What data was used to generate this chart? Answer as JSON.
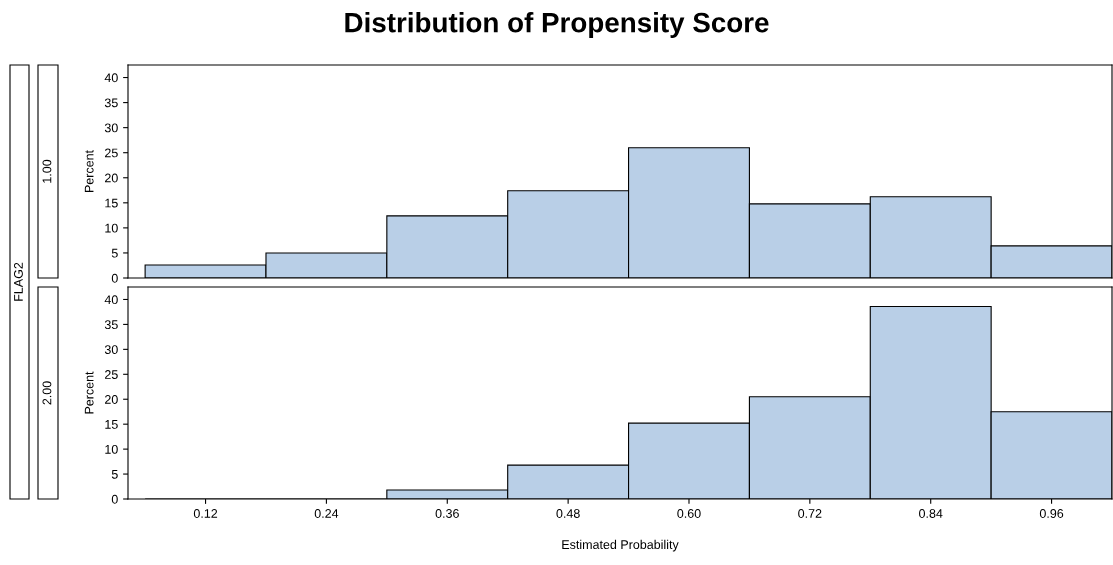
{
  "chart_data": [
    {
      "type": "histogram",
      "title": "Distribution of Propensity Score",
      "ylabel": "Percent",
      "annotations": [
        "FLAG2",
        "1.00"
      ],
      "bins": [
        0.06,
        0.18,
        0.3,
        0.42,
        0.54,
        0.66,
        0.78,
        0.9,
        1.02
      ],
      "values": [
        2.6,
        5.0,
        12.4,
        17.4,
        26.0,
        14.8,
        16.2,
        6.4
      ],
      "color": "#b9cfe7",
      "xlim": [
        0.043,
        1.02
      ],
      "ylim": [
        0,
        42.5
      ],
      "yticks": [
        0,
        5,
        10,
        15,
        20,
        25,
        30,
        35,
        40
      ],
      "tick_labels": "y",
      "grid": false,
      "legend": false
    },
    {
      "type": "histogram",
      "xlabel": "Estimated Probability",
      "ylabel": "Percent",
      "annotations": [
        "2.00"
      ],
      "bins": [
        0.06,
        0.18,
        0.3,
        0.42,
        0.54,
        0.66,
        0.78,
        0.9,
        1.02
      ],
      "values": [
        0,
        0,
        1.8,
        6.8,
        15.2,
        20.5,
        38.6,
        17.5
      ],
      "color": "#b9cfe7",
      "xlim": [
        0.043,
        1.02
      ],
      "ylim": [
        0,
        42.5
      ],
      "xticks": [
        {
          "value": 0.12,
          "label": "0.12"
        },
        {
          "value": 0.24,
          "label": "0.24"
        },
        {
          "value": 0.36,
          "label": "0.36"
        },
        {
          "value": 0.48,
          "label": "0.48"
        },
        {
          "value": 0.6,
          "label": "0.60"
        },
        {
          "value": 0.72,
          "label": "0.72"
        },
        {
          "value": 0.84,
          "label": "0.84"
        },
        {
          "value": 0.96,
          "label": "0.96"
        }
      ],
      "yticks": [
        0,
        5,
        10,
        15,
        20,
        25,
        30,
        35,
        40
      ],
      "grid": false,
      "legend": false
    }
  ]
}
